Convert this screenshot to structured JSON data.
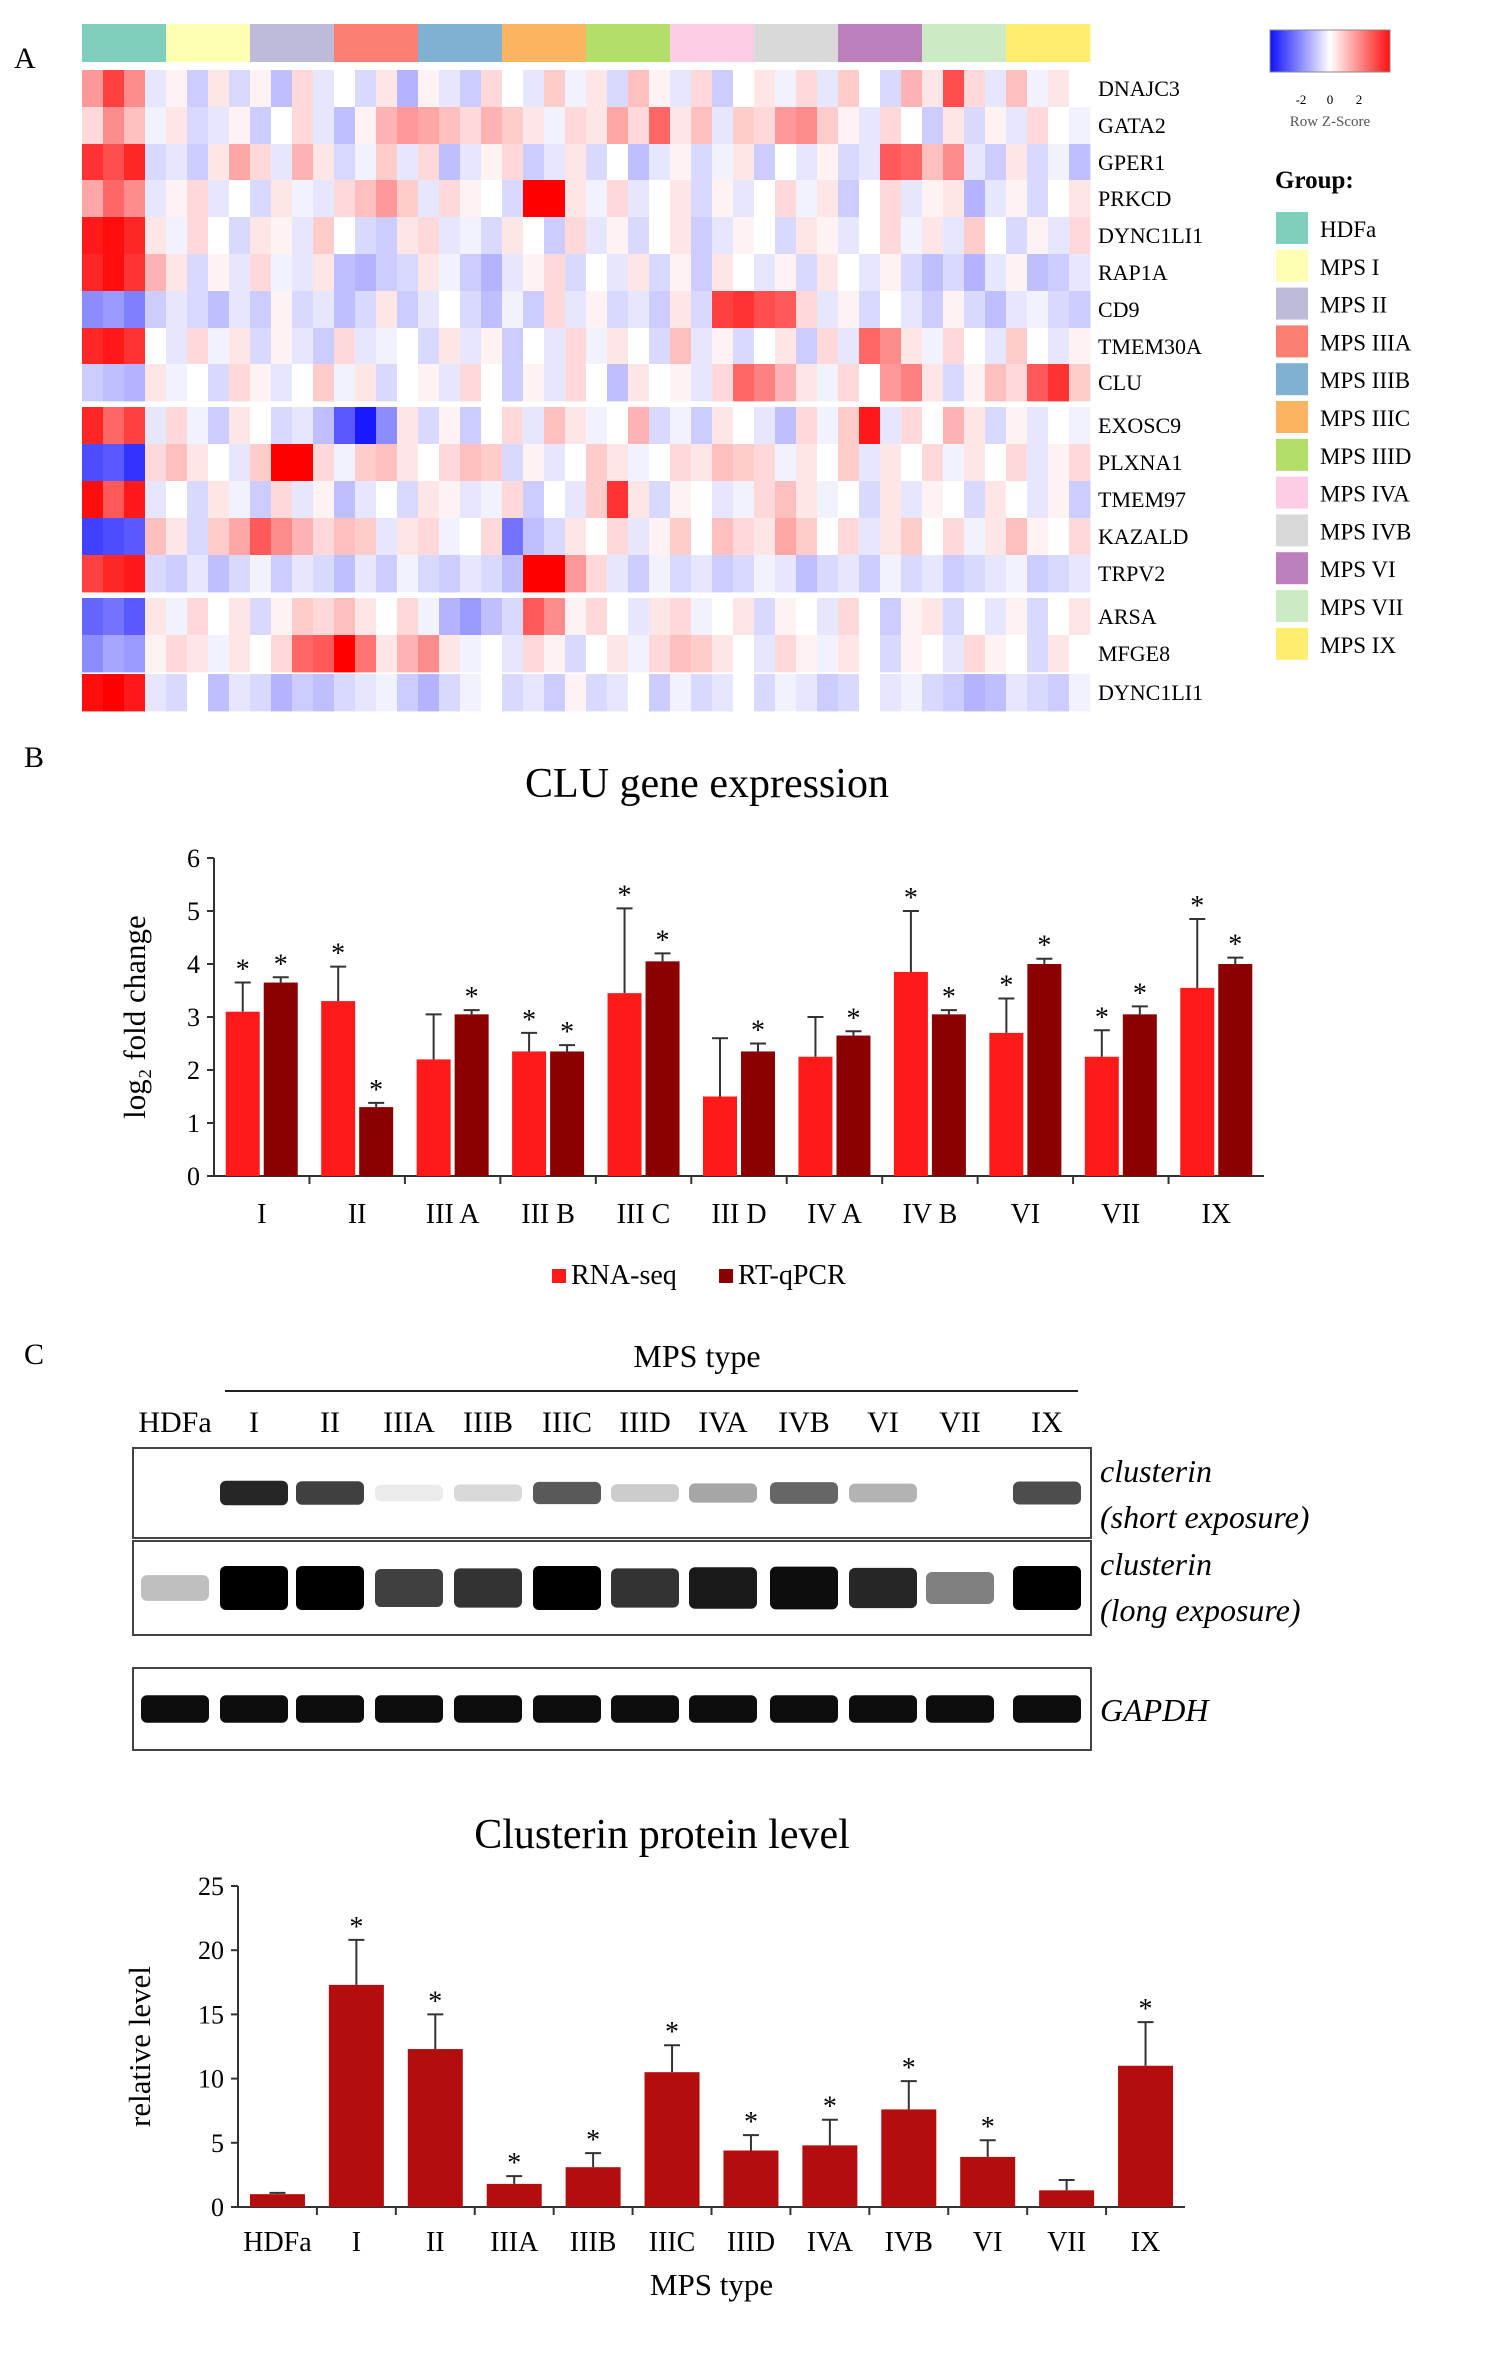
{
  "panels": {
    "a": "A",
    "b": "B",
    "c": "C"
  },
  "heatmap": {
    "genes": [
      "DNAJC3",
      "GATA2",
      "GPER1",
      "PRKCD",
      "DYNC1LI1",
      "RAP1A",
      "CD9",
      "TMEM30A",
      "CLU",
      "EXOSC9",
      "PLXNA1",
      "TMEM97",
      "KAZALD",
      "TRPV2",
      "ARSA",
      "MFGE8",
      "DYNC1LI1"
    ],
    "group_colors": [
      "#7fcdbb",
      "#ffffb3",
      "#bebada",
      "#fb8072",
      "#80b1d3",
      "#fdb462",
      "#b3de69",
      "#fccde5",
      "#d9d9d9",
      "#bc80bd",
      "#ccebc5",
      "#ffed6f"
    ],
    "colorkey": {
      "ticks": [
        "-2",
        "0",
        "2"
      ],
      "label": "Row Z-Score"
    },
    "legend_title": "Group:",
    "legend_items": [
      {
        "label": "HDFa",
        "color": "#7fcdbb"
      },
      {
        "label": "MPS I",
        "color": "#ffffb3"
      },
      {
        "label": "MPS II",
        "color": "#bebada"
      },
      {
        "label": "MPS IIIA",
        "color": "#fb8072"
      },
      {
        "label": "MPS IIIB",
        "color": "#80b1d3"
      },
      {
        "label": "MPS IIIC",
        "color": "#fdb462"
      },
      {
        "label": "MPS IIID",
        "color": "#b3de69"
      },
      {
        "label": "MPS IVA",
        "color": "#fccde5"
      },
      {
        "label": "MPS IVB",
        "color": "#d9d9d9"
      },
      {
        "label": "MPS VI",
        "color": "#bc80bd"
      },
      {
        "label": "MPS VII",
        "color": "#ccebc5"
      },
      {
        "label": "MPS IX",
        "color": "#ffed6f"
      }
    ],
    "matrix": [
      [
        0.8,
        1.5,
        0.9,
        -0.2,
        0.1,
        -0.4,
        0.2,
        -0.3,
        0.1,
        -0.5,
        0.3,
        -0.2,
        0.0,
        -0.3,
        0.2,
        -0.6,
        0.1,
        -0.2,
        -0.4,
        0.3,
        0.0,
        -0.2,
        0.4,
        -0.1,
        0.2,
        -0.3,
        0.5,
        0.1,
        -0.2,
        0.3,
        -0.4,
        0.0,
        0.2,
        -0.1,
        0.3,
        -0.2,
        0.4,
        0.0,
        -0.3,
        0.6,
        0.2,
        1.4,
        0.3,
        -0.2,
        0.5,
        -0.1,
        0.2,
        0.0
      ],
      [
        0.3,
        0.9,
        0.5,
        -0.1,
        0.2,
        -0.3,
        -0.2,
        0.1,
        -0.4,
        0.0,
        0.3,
        -0.2,
        -0.5,
        0.1,
        0.6,
        0.8,
        0.7,
        0.5,
        0.3,
        0.6,
        0.4,
        0.2,
        -0.1,
        0.3,
        0.2,
        0.7,
        0.3,
        1.2,
        0.2,
        0.5,
        -0.2,
        0.4,
        0.3,
        0.8,
        0.9,
        0.4,
        0.1,
        -0.2,
        0.3,
        0.0,
        -0.4,
        0.2,
        -0.3,
        0.1,
        -0.2,
        0.3,
        0.0,
        -0.1
      ],
      [
        1.6,
        1.4,
        1.7,
        -0.3,
        -0.2,
        -0.4,
        0.2,
        0.7,
        0.3,
        -0.2,
        0.6,
        0.2,
        -0.3,
        -0.1,
        0.4,
        -0.2,
        0.3,
        -0.5,
        -0.2,
        0.1,
        0.3,
        -0.4,
        -0.2,
        0.2,
        -0.3,
        0.0,
        -0.5,
        -0.2,
        0.1,
        -0.3,
        -0.1,
        0.2,
        -0.4,
        0.0,
        -0.2,
        0.1,
        -0.3,
        -0.2,
        1.3,
        1.2,
        0.5,
        0.9,
        -0.2,
        -0.4,
        0.2,
        -0.3,
        -0.1,
        -0.5
      ],
      [
        0.7,
        1.2,
        0.9,
        -0.2,
        0.1,
        0.3,
        -0.2,
        0.0,
        -0.3,
        0.2,
        -0.1,
        -0.2,
        0.3,
        0.5,
        0.8,
        0.4,
        -0.2,
        0.3,
        0.1,
        0.0,
        -0.3,
        2.6,
        2.8,
        0.2,
        -0.1,
        0.3,
        -0.2,
        0.0,
        0.2,
        -0.3,
        0.1,
        -0.2,
        0.0,
        0.3,
        -0.1,
        0.2,
        -0.4,
        0.0,
        0.3,
        -0.2,
        0.1,
        0.2,
        -0.6,
        -0.2,
        0.1,
        -0.3,
        0.0,
        0.2
      ],
      [
        1.8,
        1.9,
        1.7,
        0.2,
        -0.1,
        0.3,
        0.0,
        -0.3,
        0.2,
        0.1,
        -0.2,
        0.4,
        0.0,
        -0.3,
        -0.4,
        0.2,
        0.3,
        -0.2,
        -0.1,
        -0.3,
        0.2,
        0.0,
        -0.4,
        0.3,
        -0.2,
        0.1,
        -0.3,
        0.0,
        0.2,
        -0.4,
        -0.2,
        0.1,
        0.0,
        -0.3,
        0.2,
        0.1,
        -0.2,
        0.0,
        0.3,
        -0.1,
        0.2,
        -0.2,
        0.4,
        0.0,
        -0.3,
        0.1,
        -0.2,
        0.3
      ],
      [
        1.7,
        1.9,
        1.6,
        0.6,
        0.2,
        -0.3,
        0.1,
        -0.2,
        0.3,
        -0.1,
        -0.2,
        0.2,
        -0.5,
        -0.6,
        -0.4,
        -0.3,
        0.2,
        -0.1,
        -0.4,
        -0.6,
        -0.2,
        0.1,
        0.3,
        -0.3,
        0.0,
        -0.2,
        0.2,
        -0.3,
        0.1,
        -0.4,
        0.2,
        0.0,
        -0.2,
        0.1,
        -0.3,
        0.2,
        0.0,
        -0.2,
        0.1,
        -0.3,
        -0.5,
        -0.3,
        -0.6,
        -0.2,
        0.1,
        -0.5,
        -0.4,
        -0.2
      ],
      [
        -0.9,
        -0.8,
        -1.0,
        -0.4,
        -0.2,
        -0.3,
        -0.5,
        -0.2,
        -0.4,
        0.1,
        -0.3,
        -0.2,
        -0.5,
        -0.3,
        0.2,
        -0.4,
        -0.2,
        0.0,
        -0.3,
        -0.5,
        -0.1,
        -0.4,
        0.3,
        -0.2,
        0.1,
        -0.3,
        -0.2,
        -0.4,
        0.2,
        -0.3,
        1.5,
        1.6,
        1.4,
        1.3,
        0.3,
        -0.2,
        0.1,
        -0.3,
        0.0,
        -0.2,
        -0.4,
        0.1,
        -0.3,
        -0.5,
        -0.2,
        -0.1,
        -0.3,
        -0.4
      ],
      [
        1.7,
        1.8,
        1.6,
        0.0,
        -0.2,
        0.3,
        -0.1,
        0.2,
        -0.3,
        0.1,
        -0.2,
        -0.4,
        0.3,
        -0.2,
        -0.1,
        0.0,
        -0.3,
        0.2,
        -0.2,
        0.1,
        -0.4,
        0.0,
        -0.2,
        0.3,
        -0.1,
        0.2,
        0.0,
        -0.3,
        0.5,
        -0.2,
        0.1,
        -0.3,
        0.0,
        0.2,
        -0.4,
        0.3,
        -0.2,
        1.2,
        0.9,
        0.2,
        -0.1,
        0.3,
        0.0,
        -0.2,
        0.4,
        0.0,
        -0.2,
        0.1
      ],
      [
        -0.4,
        -0.5,
        -0.6,
        0.2,
        -0.1,
        0.0,
        -0.3,
        0.3,
        0.1,
        -0.2,
        0.0,
        0.4,
        -0.1,
        0.2,
        -0.3,
        0.0,
        0.1,
        -0.2,
        0.3,
        0.0,
        -0.4,
        0.1,
        -0.2,
        0.3,
        0.0,
        -0.5,
        0.2,
        0.0,
        0.1,
        -0.2,
        0.3,
        1.2,
        1.0,
        0.6,
        0.2,
        -0.1,
        0.3,
        0.0,
        0.8,
        1.0,
        0.2,
        -0.3,
        0.1,
        0.5,
        0.3,
        1.3,
        1.6,
        0.4
      ],
      [
        1.7,
        1.2,
        1.5,
        -0.2,
        0.3,
        -0.1,
        -0.4,
        0.2,
        0.0,
        -0.3,
        -0.2,
        -0.5,
        -1.3,
        -1.8,
        -0.9,
        0.2,
        -0.3,
        0.1,
        -0.4,
        0.0,
        0.3,
        -0.2,
        0.5,
        0.2,
        -0.1,
        0.0,
        0.6,
        -0.3,
        -0.1,
        -0.4,
        0.2,
        0.0,
        -0.2,
        -0.5,
        0.3,
        -0.1,
        0.4,
        1.8,
        -0.2,
        0.3,
        0.0,
        0.6,
        0.2,
        -0.3,
        0.1,
        -0.2,
        0.0,
        -0.1
      ],
      [
        -1.4,
        -1.3,
        -1.6,
        0.3,
        0.5,
        0.2,
        0.0,
        -0.2,
        0.4,
        2.0,
        2.2,
        0.3,
        -0.1,
        0.4,
        0.5,
        0.2,
        0.0,
        0.3,
        0.5,
        0.4,
        -0.3,
        0.1,
        -0.2,
        0.0,
        0.4,
        0.2,
        -0.1,
        0.0,
        0.3,
        0.2,
        0.5,
        0.4,
        0.3,
        -0.1,
        0.2,
        0.0,
        0.4,
        -0.2,
        0.2,
        0.0,
        0.3,
        -0.1,
        0.2,
        0.0,
        0.3,
        -0.2,
        0.1,
        0.3
      ],
      [
        1.9,
        1.3,
        1.8,
        -0.2,
        0.0,
        -0.3,
        0.2,
        -0.1,
        -0.4,
        0.3,
        -0.2,
        0.1,
        -0.5,
        -0.2,
        0.0,
        -0.3,
        0.2,
        0.1,
        -0.2,
        -0.1,
        0.3,
        -0.4,
        0.0,
        -0.2,
        0.4,
        1.6,
        0.2,
        -0.3,
        0.1,
        0.0,
        -0.2,
        -0.1,
        0.3,
        0.5,
        0.2,
        -0.1,
        0.0,
        -0.3,
        0.2,
        -0.2,
        0.1,
        0.0,
        -0.3,
        0.2,
        0.0,
        -0.2,
        0.1,
        -0.4
      ],
      [
        -1.5,
        -1.4,
        -1.3,
        0.5,
        0.2,
        -0.3,
        0.4,
        0.7,
        1.3,
        0.9,
        0.6,
        0.3,
        0.5,
        0.4,
        -0.2,
        0.2,
        0.3,
        -0.1,
        0.0,
        0.3,
        -1.1,
        -0.5,
        -0.3,
        0.2,
        0.0,
        0.3,
        -0.2,
        0.1,
        0.4,
        0.0,
        0.5,
        0.3,
        0.2,
        0.7,
        0.4,
        0.0,
        0.3,
        -0.2,
        0.2,
        0.4,
        0.0,
        0.3,
        -0.1,
        0.2,
        0.5,
        0.1,
        0.0,
        0.3
      ],
      [
        1.5,
        1.7,
        1.8,
        -0.3,
        -0.4,
        -0.2,
        -0.5,
        -0.3,
        -0.1,
        -0.4,
        -0.2,
        -0.3,
        -0.5,
        -0.2,
        -0.4,
        -0.1,
        -0.3,
        -0.4,
        -0.2,
        -0.3,
        -0.5,
        2.5,
        2.3,
        0.8,
        0.3,
        -0.2,
        -0.4,
        -0.1,
        -0.3,
        -0.2,
        -0.4,
        -0.3,
        -0.1,
        -0.2,
        -0.5,
        -0.3,
        -0.2,
        -0.4,
        -0.1,
        -0.3,
        -0.2,
        -0.4,
        -0.3,
        -0.2,
        -0.1,
        -0.4,
        -0.3,
        -0.2
      ],
      [
        -1.2,
        -1.1,
        -1.3,
        0.2,
        -0.1,
        0.3,
        0.0,
        0.2,
        -0.3,
        0.1,
        0.4,
        0.3,
        0.5,
        0.2,
        0.0,
        0.3,
        -0.1,
        -0.6,
        -0.8,
        -0.5,
        -0.3,
        1.3,
        0.9,
        0.1,
        0.3,
        0.0,
        -0.2,
        0.2,
        0.3,
        -0.1,
        0.0,
        0.2,
        -0.3,
        0.1,
        0.0,
        -0.2,
        0.3,
        0.0,
        -0.4,
        0.1,
        0.2,
        -0.3,
        0.0,
        -0.2,
        0.1,
        -0.3,
        0.0,
        0.2
      ],
      [
        -0.9,
        -0.7,
        -0.8,
        0.1,
        0.3,
        0.2,
        -0.1,
        0.2,
        0.0,
        0.3,
        1.2,
        1.3,
        2.0,
        1.1,
        0.2,
        0.6,
        0.9,
        0.2,
        -0.1,
        0.0,
        -0.2,
        0.3,
        0.1,
        -0.3,
        0.0,
        0.2,
        -0.1,
        0.3,
        0.5,
        0.4,
        0.2,
        0.0,
        -0.2,
        0.3,
        0.1,
        -0.1,
        0.2,
        0.0,
        -0.3,
        0.1,
        0.0,
        -0.2,
        0.3,
        0.1,
        0.0,
        -0.3,
        0.2,
        0.0
      ],
      [
        1.9,
        2.0,
        1.8,
        -0.2,
        -0.3,
        0.0,
        -0.5,
        -0.2,
        -0.3,
        -0.6,
        -0.4,
        -0.5,
        -0.3,
        -0.2,
        -0.1,
        -0.4,
        -0.6,
        -0.3,
        -0.1,
        0.0,
        -0.3,
        -0.2,
        -0.4,
        0.1,
        -0.3,
        -0.2,
        0.0,
        -0.4,
        -0.1,
        -0.3,
        -0.2,
        0.0,
        -0.3,
        -0.1,
        -0.2,
        -0.4,
        -0.3,
        0.0,
        -0.2,
        -0.1,
        -0.3,
        -0.4,
        -0.6,
        -0.5,
        -0.2,
        -0.3,
        -0.4,
        -0.1
      ]
    ]
  },
  "chart_data": [
    {
      "type": "bar",
      "title": "CLU gene expression",
      "ylabel": "log₂ fold change",
      "xlabel": "",
      "ylim": [
        0,
        6
      ],
      "yticks": [
        "0",
        "1",
        "2",
        "3",
        "4",
        "5",
        "6"
      ],
      "categories": [
        "I",
        "II",
        "III A",
        "III B",
        "III C",
        "III D",
        "IV A",
        "IV B",
        "VI",
        "VII",
        "IX"
      ],
      "significance_marker": "*",
      "legend_position": "bottom",
      "series": [
        {
          "name": "RNA-seq",
          "color": "#ff1a1a",
          "values": [
            3.1,
            3.3,
            2.2,
            2.35,
            3.45,
            1.5,
            2.25,
            3.85,
            2.7,
            2.25,
            3.55
          ],
          "errors": [
            0.55,
            0.65,
            0.85,
            0.35,
            1.6,
            1.1,
            0.75,
            1.15,
            0.65,
            0.5,
            1.3
          ],
          "significant": [
            true,
            true,
            false,
            true,
            true,
            false,
            false,
            true,
            true,
            true,
            true
          ]
        },
        {
          "name": "RT-qPCR",
          "color": "#8b0000",
          "values": [
            3.65,
            1.3,
            3.05,
            2.35,
            4.05,
            2.35,
            2.65,
            3.05,
            4.0,
            3.05,
            4.0
          ],
          "errors": [
            0.1,
            0.08,
            0.08,
            0.12,
            0.15,
            0.15,
            0.08,
            0.08,
            0.1,
            0.15,
            0.12
          ],
          "significant": [
            true,
            true,
            true,
            true,
            true,
            true,
            true,
            true,
            true,
            true,
            true
          ]
        }
      ]
    },
    {
      "type": "bar",
      "title": "Clusterin protein level",
      "ylabel": "relative level",
      "xlabel": "MPS type",
      "ylim": [
        0,
        25
      ],
      "yticks": [
        "0",
        "5",
        "10",
        "15",
        "20",
        "25"
      ],
      "categories": [
        "HDFa",
        "I",
        "II",
        "IIIA",
        "IIIB",
        "IIIC",
        "IIID",
        "IVA",
        "IVB",
        "VI",
        "VII",
        "IX"
      ],
      "significance_marker": "*",
      "series": [
        {
          "name": "",
          "color": "#b30d0d",
          "values": [
            1.0,
            17.3,
            12.3,
            1.8,
            3.1,
            10.5,
            4.4,
            4.8,
            7.6,
            3.9,
            1.3,
            11.0
          ],
          "errors": [
            0.1,
            3.5,
            2.7,
            0.6,
            1.1,
            2.1,
            1.2,
            2.0,
            2.2,
            1.3,
            0.8,
            3.4
          ],
          "significant": [
            false,
            true,
            true,
            true,
            true,
            true,
            true,
            true,
            true,
            true,
            false,
            true
          ]
        }
      ]
    }
  ],
  "blot": {
    "header": "MPS type",
    "lanes": [
      "HDFa",
      "I",
      "II",
      "IIIA",
      "IIIB",
      "IIIC",
      "IIID",
      "IVA",
      "IVB",
      "VI",
      "VII",
      "IX"
    ],
    "rows": [
      {
        "label_line1": "clusterin",
        "label_line2": "(short exposure)",
        "intensity": [
          0.0,
          0.85,
          0.75,
          0.08,
          0.15,
          0.65,
          0.2,
          0.35,
          0.6,
          0.3,
          0.0,
          0.7
        ]
      },
      {
        "label_line1": "clusterin",
        "label_line2": "(long exposure)",
        "intensity": [
          0.25,
          1.0,
          1.0,
          0.75,
          0.8,
          1.0,
          0.8,
          0.9,
          0.95,
          0.85,
          0.5,
          1.0
        ]
      },
      {
        "label_line1": "GAPDH",
        "label_line2": "",
        "intensity": [
          0.95,
          0.95,
          0.95,
          0.95,
          0.95,
          0.95,
          0.95,
          0.95,
          0.95,
          0.95,
          0.95,
          0.95
        ]
      }
    ]
  }
}
